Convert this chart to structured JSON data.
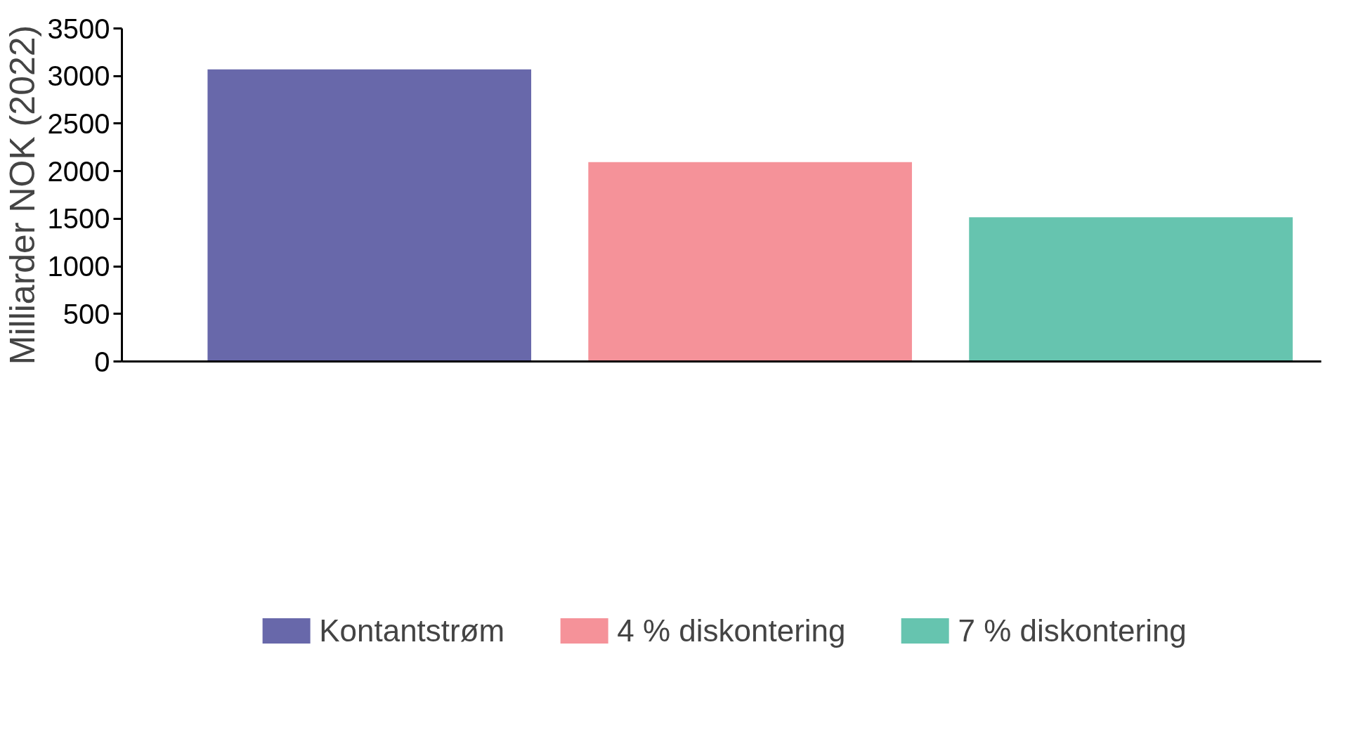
{
  "chart_data": {
    "type": "bar",
    "ylabel": "Milliarder NOK (2022)",
    "categories": [
      null,
      null,
      null
    ],
    "series": [
      {
        "name": "Kontantstrøm",
        "color": "#6868aa",
        "values": [
          3070,
          null,
          null
        ]
      },
      {
        "name": "4 % diskontering",
        "color": "#f59299",
        "values": [
          null,
          2095,
          null
        ]
      },
      {
        "name": "7 % diskontering",
        "color": "#66c4af",
        "values": [
          null,
          null,
          1515
        ]
      }
    ],
    "ylim": [
      0,
      3500
    ],
    "yticks": [
      0,
      500,
      1000,
      1500,
      2000,
      2500,
      3000,
      3500
    ],
    "grid": false,
    "legend": "bottom"
  }
}
